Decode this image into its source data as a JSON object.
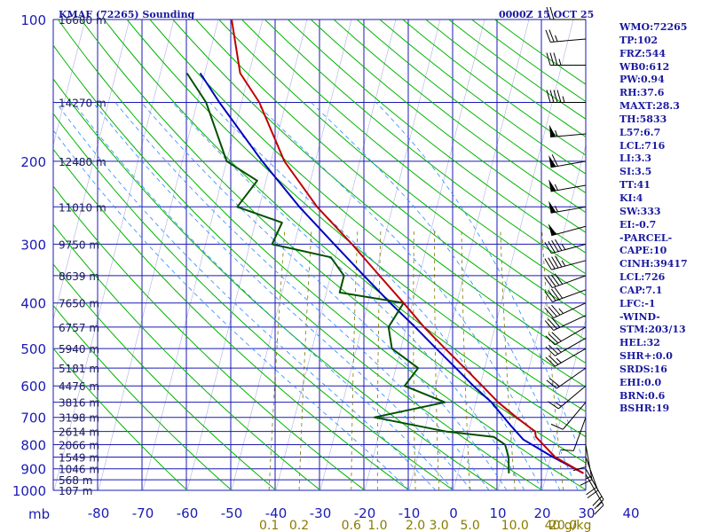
{
  "header": {
    "station": "KMAF (72265) Sounding",
    "time": "0000Z 15 OCT 25"
  },
  "indices": [
    "WMO:72265",
    "TP:102",
    "FRZ:544",
    "WB0:612",
    "PW:0.94",
    "RH:37.6",
    "MAXT:28.3",
    "TH:5833",
    "L57:6.7",
    "LCL:716",
    "LI:3.3",
    "SI:3.5",
    "TT:41",
    "KI:4",
    "SW:333",
    "EI:-0.7",
    "-PARCEL-",
    "CAPE:10",
    "CINH:39417",
    "LCL:726",
    "CAP:7.1",
    "LFC:-1",
    "-WIND-",
    "STM:203/13",
    "HEL:32",
    "SHR+:0.0",
    "SRDS:16",
    "EHI:0.0",
    "BRN:0.6",
    "BSHR:19"
  ],
  "colors": {
    "isobar": "#1a1ab4",
    "dry_adiabat": "#00b400",
    "temperature": "#c00000",
    "dewpoint": "#005000",
    "parcel": "#0000c0",
    "mixing_ratio": "#7a7a00",
    "moist_adiabat": "#2a8aff",
    "axis_text": "#1a1ab4",
    "mixing_text": "#8a7a00"
  },
  "chart_data": {
    "type": "skew-t",
    "pressure_axis": {
      "ticks": [
        100,
        200,
        300,
        400,
        500,
        600,
        700,
        800,
        900,
        1000
      ],
      "unit_label": "mb",
      "range": [
        100,
        1000
      ]
    },
    "temperature_axis": {
      "ticks": [
        -80,
        -70,
        -60,
        -50,
        -40,
        -30,
        -20,
        -10,
        0,
        10,
        20,
        30,
        40
      ],
      "tick_labels": [
        "-80",
        "-70",
        "-60",
        "-50",
        "-40",
        "-30",
        "-20",
        "-10",
        "0",
        "10",
        "20",
        "30",
        "40"
      ]
    },
    "isobars": [
      100,
      150,
      200,
      250,
      300,
      350,
      400,
      450,
      500,
      550,
      600,
      650,
      700,
      750,
      800,
      850,
      900,
      950,
      1000
    ],
    "height_labels": [
      {
        "p": 100,
        "label": "16680 m"
      },
      {
        "p": 150,
        "label": "14270 m"
      },
      {
        "p": 200,
        "label": "12480 m"
      },
      {
        "p": 250,
        "label": "11010 m"
      },
      {
        "p": 300,
        "label": "9750 m"
      },
      {
        "p": 350,
        "label": "8639 m"
      },
      {
        "p": 400,
        "label": "7650 m"
      },
      {
        "p": 450,
        "label": "6757 m"
      },
      {
        "p": 500,
        "label": "5940 m"
      },
      {
        "p": 550,
        "label": "5181 m"
      },
      {
        "p": 600,
        "label": "4476 m"
      },
      {
        "p": 650,
        "label": "3816 m"
      },
      {
        "p": 700,
        "label": "3198 m"
      },
      {
        "p": 750,
        "label": "2614 m"
      },
      {
        "p": 800,
        "label": "2066 m"
      },
      {
        "p": 850,
        "label": "1549 m"
      },
      {
        "p": 900,
        "label": "1046 m"
      },
      {
        "p": 950,
        "label": "568 m"
      },
      {
        "p": 1000,
        "label": "107 m"
      }
    ],
    "mixing_ratio_labels": [
      "0.1",
      "0.2",
      "0.6",
      "1.0",
      "2.0",
      "3.0",
      "5.0",
      "10.0",
      "20.0",
      "40 g/kg"
    ],
    "mixing_ratios_gkg": [
      0.1,
      0.2,
      0.6,
      1.0,
      2.0,
      3.0,
      5.0,
      10.0,
      20.0,
      40.0
    ],
    "temperature_profile": [
      {
        "p": 920,
        "t": 28.3
      },
      {
        "p": 850,
        "t": 21.0
      },
      {
        "p": 770,
        "t": 15.5
      },
      {
        "p": 750,
        "t": 15.0
      },
      {
        "p": 700,
        "t": 10.0
      },
      {
        "p": 650,
        "t": 5.0
      },
      {
        "p": 600,
        "t": 0.5
      },
      {
        "p": 550,
        "t": -4.5
      },
      {
        "p": 500,
        "t": -10.0
      },
      {
        "p": 450,
        "t": -16.0
      },
      {
        "p": 400,
        "t": -22.0
      },
      {
        "p": 350,
        "t": -29.0
      },
      {
        "p": 300,
        "t": -37.0
      },
      {
        "p": 250,
        "t": -47.0
      },
      {
        "p": 200,
        "t": -57.0
      },
      {
        "p": 150,
        "t": -66.0
      },
      {
        "p": 130,
        "t": -72.0
      },
      {
        "p": 100,
        "t": -77.0
      }
    ],
    "dewpoint_profile": [
      {
        "p": 920,
        "t": 11.5
      },
      {
        "p": 850,
        "t": 10.5
      },
      {
        "p": 800,
        "t": 9.0
      },
      {
        "p": 770,
        "t": 6.0
      },
      {
        "p": 750,
        "t": -5.0
      },
      {
        "p": 700,
        "t": -22.0
      },
      {
        "p": 650,
        "t": -7.0
      },
      {
        "p": 600,
        "t": -17.0
      },
      {
        "p": 550,
        "t": -15.0
      },
      {
        "p": 500,
        "t": -22.0
      },
      {
        "p": 450,
        "t": -24.0
      },
      {
        "p": 400,
        "t": -22.0
      },
      {
        "p": 380,
        "t": -37.0
      },
      {
        "p": 350,
        "t": -37.0
      },
      {
        "p": 320,
        "t": -41.0
      },
      {
        "p": 300,
        "t": -55.0
      },
      {
        "p": 270,
        "t": -54.0
      },
      {
        "p": 250,
        "t": -65.0
      },
      {
        "p": 220,
        "t": -62.0
      },
      {
        "p": 200,
        "t": -70.0
      },
      {
        "p": 150,
        "t": -78.0
      },
      {
        "p": 130,
        "t": -84.0
      }
    ],
    "parcel_profile": [
      {
        "p": 920,
        "t": 28.3
      },
      {
        "p": 850,
        "t": 20.5
      },
      {
        "p": 780,
        "t": 12.8
      },
      {
        "p": 726,
        "t": 9.0
      },
      {
        "p": 650,
        "t": 3.5
      },
      {
        "p": 600,
        "t": -1.5
      },
      {
        "p": 550,
        "t": -6.5
      },
      {
        "p": 500,
        "t": -12.0
      },
      {
        "p": 450,
        "t": -18.0
      },
      {
        "p": 400,
        "t": -25.0
      },
      {
        "p": 350,
        "t": -32.5
      },
      {
        "p": 300,
        "t": -41.0
      },
      {
        "p": 250,
        "t": -51.0
      },
      {
        "p": 200,
        "t": -62.0
      },
      {
        "p": 150,
        "t": -75.0
      },
      {
        "p": 130,
        "t": -81.0
      }
    ],
    "wind_barbs": [
      {
        "p": 100,
        "dir": 270,
        "spd": 20
      },
      {
        "p": 110,
        "dir": 265,
        "spd": 25
      },
      {
        "p": 125,
        "dir": 270,
        "spd": 35
      },
      {
        "p": 150,
        "dir": 270,
        "spd": 45
      },
      {
        "p": 175,
        "dir": 265,
        "spd": 55
      },
      {
        "p": 200,
        "dir": 260,
        "spd": 60
      },
      {
        "p": 225,
        "dir": 260,
        "spd": 55
      },
      {
        "p": 250,
        "dir": 260,
        "spd": 55
      },
      {
        "p": 275,
        "dir": 255,
        "spd": 50
      },
      {
        "p": 300,
        "dir": 255,
        "spd": 45
      },
      {
        "p": 325,
        "dir": 255,
        "spd": 45
      },
      {
        "p": 350,
        "dir": 250,
        "spd": 40
      },
      {
        "p": 375,
        "dir": 250,
        "spd": 40
      },
      {
        "p": 400,
        "dir": 245,
        "spd": 35
      },
      {
        "p": 425,
        "dir": 245,
        "spd": 30
      },
      {
        "p": 450,
        "dir": 240,
        "spd": 30
      },
      {
        "p": 475,
        "dir": 240,
        "spd": 25
      },
      {
        "p": 500,
        "dir": 240,
        "spd": 25
      },
      {
        "p": 550,
        "dir": 235,
        "spd": 20
      },
      {
        "p": 600,
        "dir": 230,
        "spd": 15
      },
      {
        "p": 650,
        "dir": 220,
        "spd": 10
      },
      {
        "p": 700,
        "dir": 200,
        "spd": 10
      },
      {
        "p": 750,
        "dir": 180,
        "spd": 10
      },
      {
        "p": 800,
        "dir": 170,
        "spd": 15
      },
      {
        "p": 850,
        "dir": 160,
        "spd": 20
      },
      {
        "p": 900,
        "dir": 150,
        "spd": 20
      },
      {
        "p": 925,
        "dir": 150,
        "spd": 15
      }
    ]
  }
}
